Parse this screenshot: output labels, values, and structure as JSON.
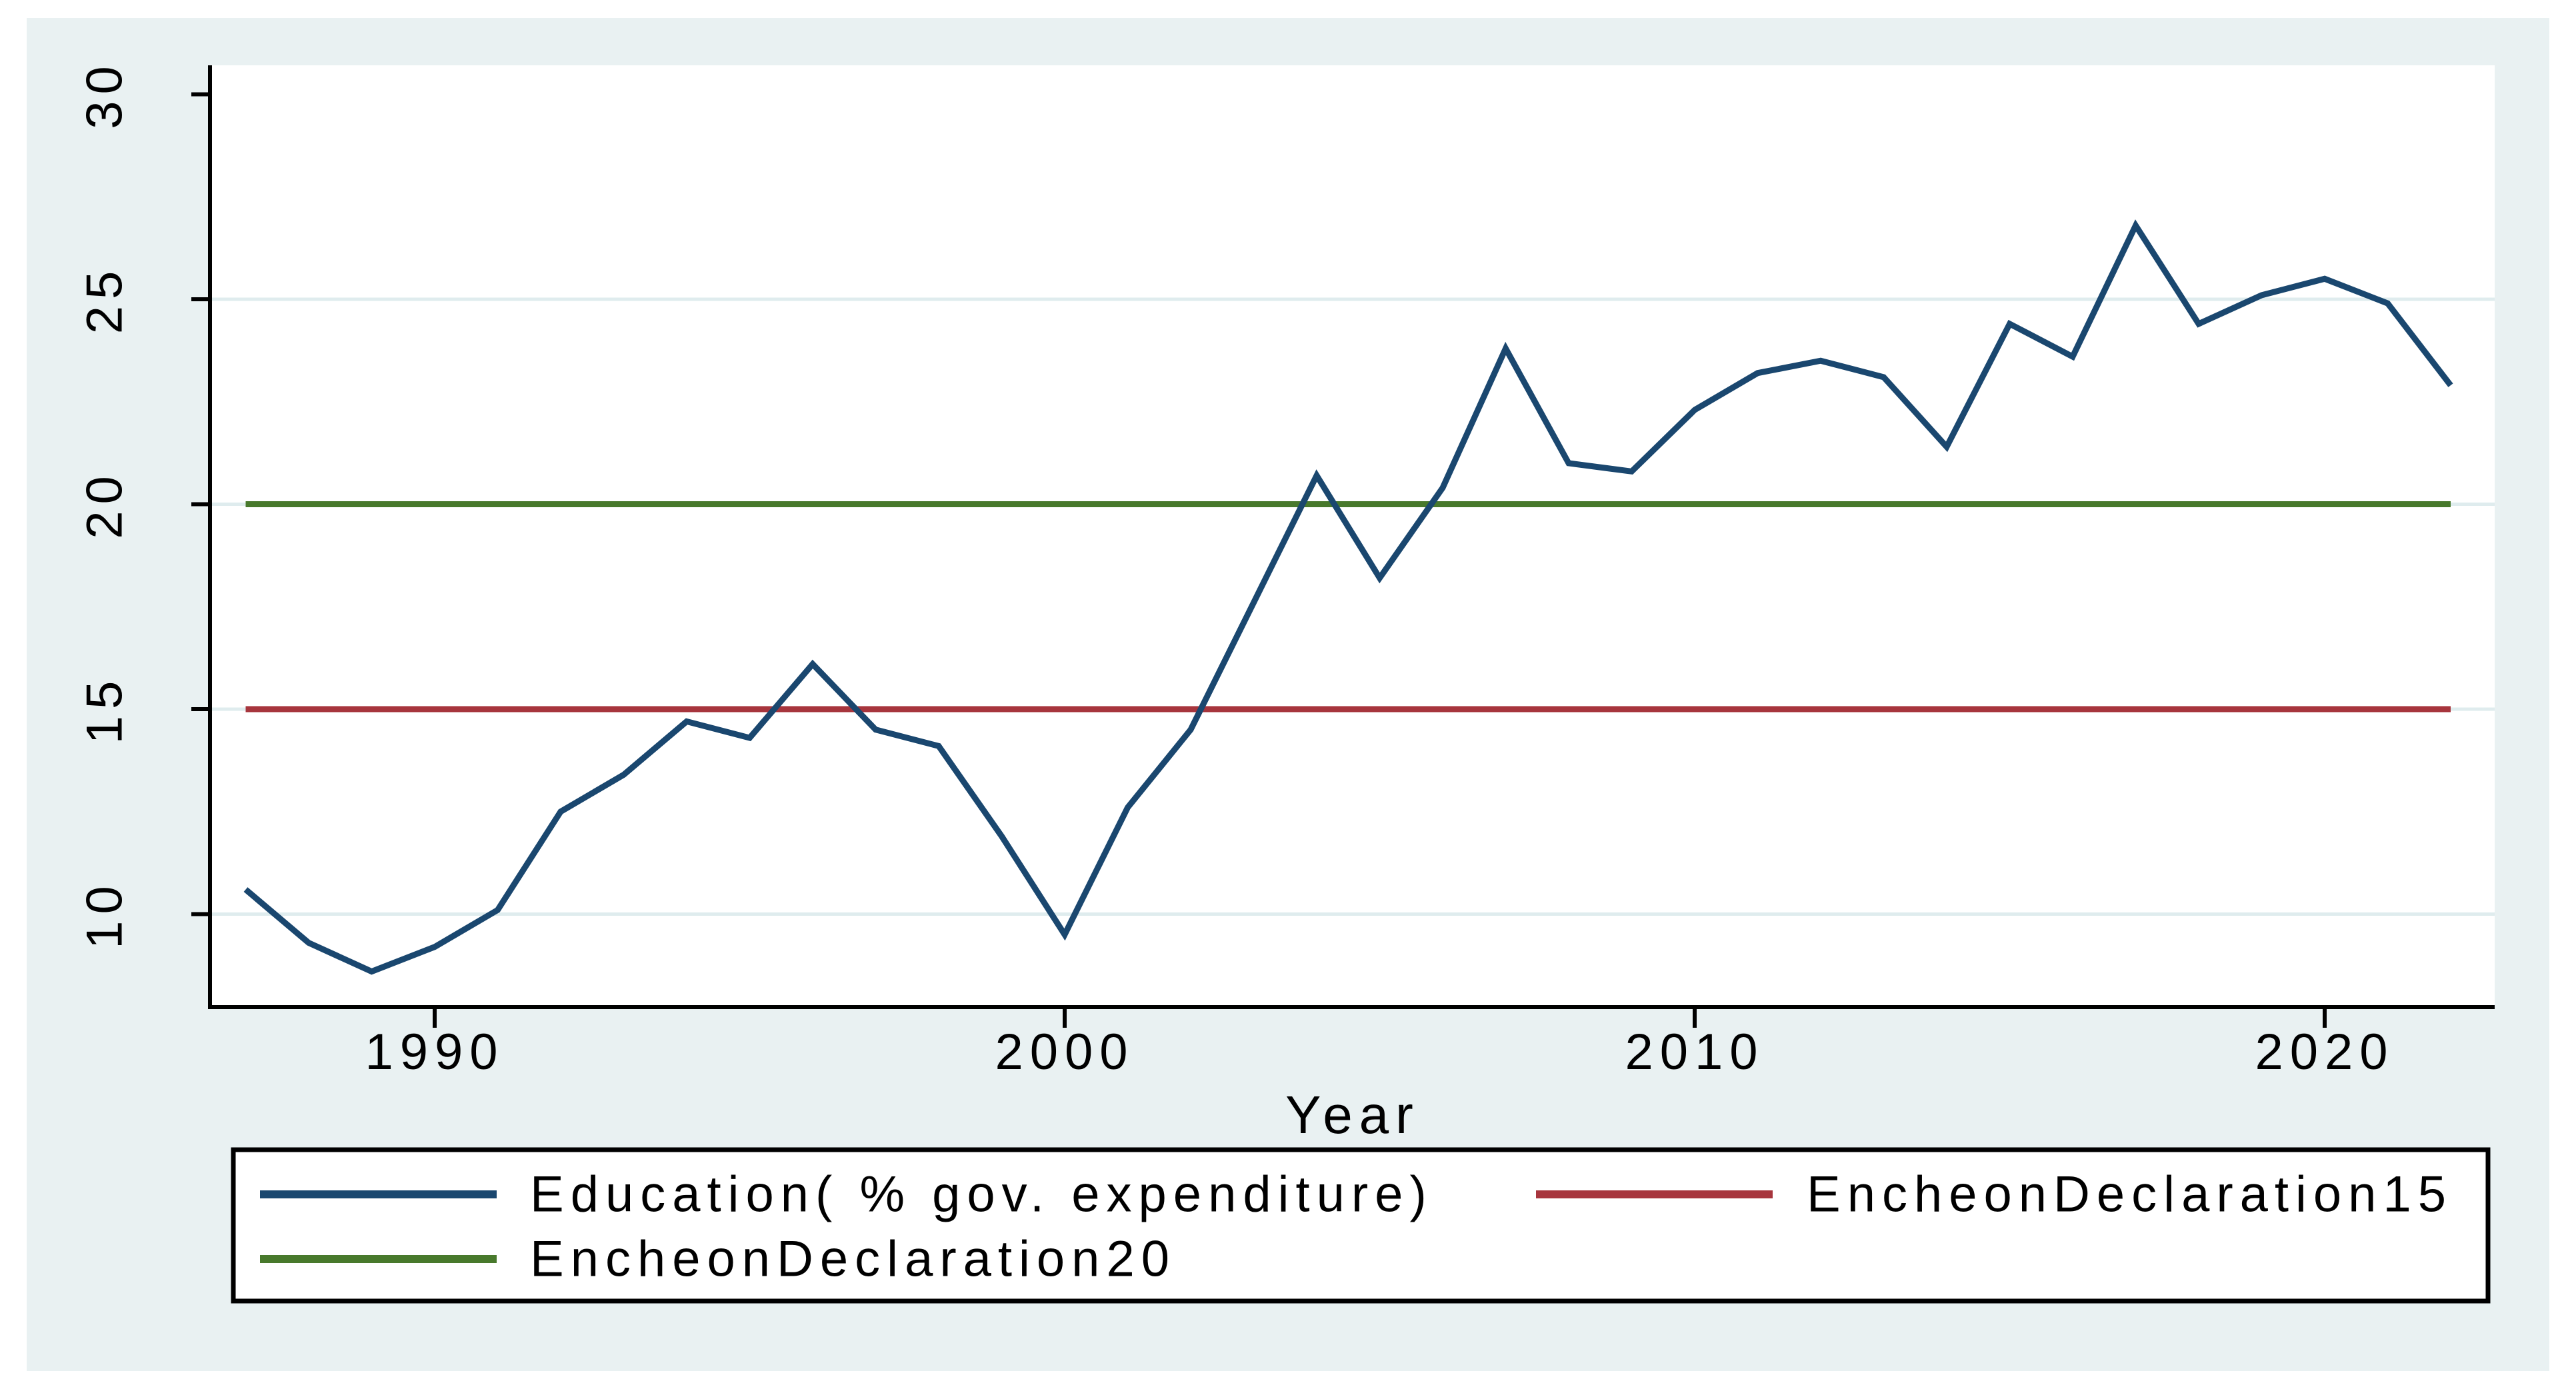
{
  "window": {
    "outer_background": "#ffffff",
    "canvas_background": "#e9f1f2",
    "plot_background": "#ffffff",
    "gridline_color": "#dfecee",
    "axis_color": "#000000"
  },
  "chart_data": {
    "type": "line",
    "title": "",
    "xlabel": "Year",
    "ylabel": "",
    "xlim": [
      1986.4,
      2022.7
    ],
    "ylim": [
      7.7,
      30.7
    ],
    "grid": true,
    "grid_y_values": [
      10,
      15,
      20,
      25
    ],
    "x_ticks": [
      1990,
      2000,
      2010,
      2020
    ],
    "y_ticks": [
      10,
      15,
      20,
      25,
      30
    ],
    "legend_position": "bottom",
    "x": [
      1987,
      1988,
      1989,
      1990,
      1991,
      1992,
      1993,
      1994,
      1995,
      1996,
      1997,
      1998,
      1999,
      2000,
      2001,
      2002,
      2003,
      2004,
      2005,
      2006,
      2007,
      2008,
      2009,
      2010,
      2011,
      2012,
      2013,
      2014,
      2015,
      2016,
      2017,
      2018,
      2019,
      2020,
      2021,
      2022
    ],
    "series": [
      {
        "name": "Education( % gov. expenditure)",
        "kind": "line",
        "color": "#1a476f",
        "values": [
          10.6,
          9.3,
          8.6,
          9.2,
          10.1,
          12.5,
          13.4,
          14.7,
          14.3,
          16.1,
          14.5,
          14.1,
          11.9,
          9.5,
          12.6,
          14.5,
          17.6,
          20.7,
          18.2,
          20.4,
          23.8,
          21.0,
          20.8,
          22.3,
          23.2,
          23.5,
          23.1,
          21.4,
          24.4,
          23.6,
          26.8,
          24.4,
          25.1,
          25.5,
          24.9,
          22.9
        ]
      },
      {
        "name": "EncheonDeclaration15",
        "kind": "refline",
        "color": "#a7353d",
        "value": 15
      },
      {
        "name": "EncheonDeclaration20",
        "kind": "refline",
        "color": "#48792c",
        "value": 20
      }
    ],
    "y_tick_labels": [
      "10",
      "15",
      "20",
      "25",
      "30"
    ],
    "x_tick_labels": [
      "1990",
      "2000",
      "2010",
      "2020"
    ]
  }
}
